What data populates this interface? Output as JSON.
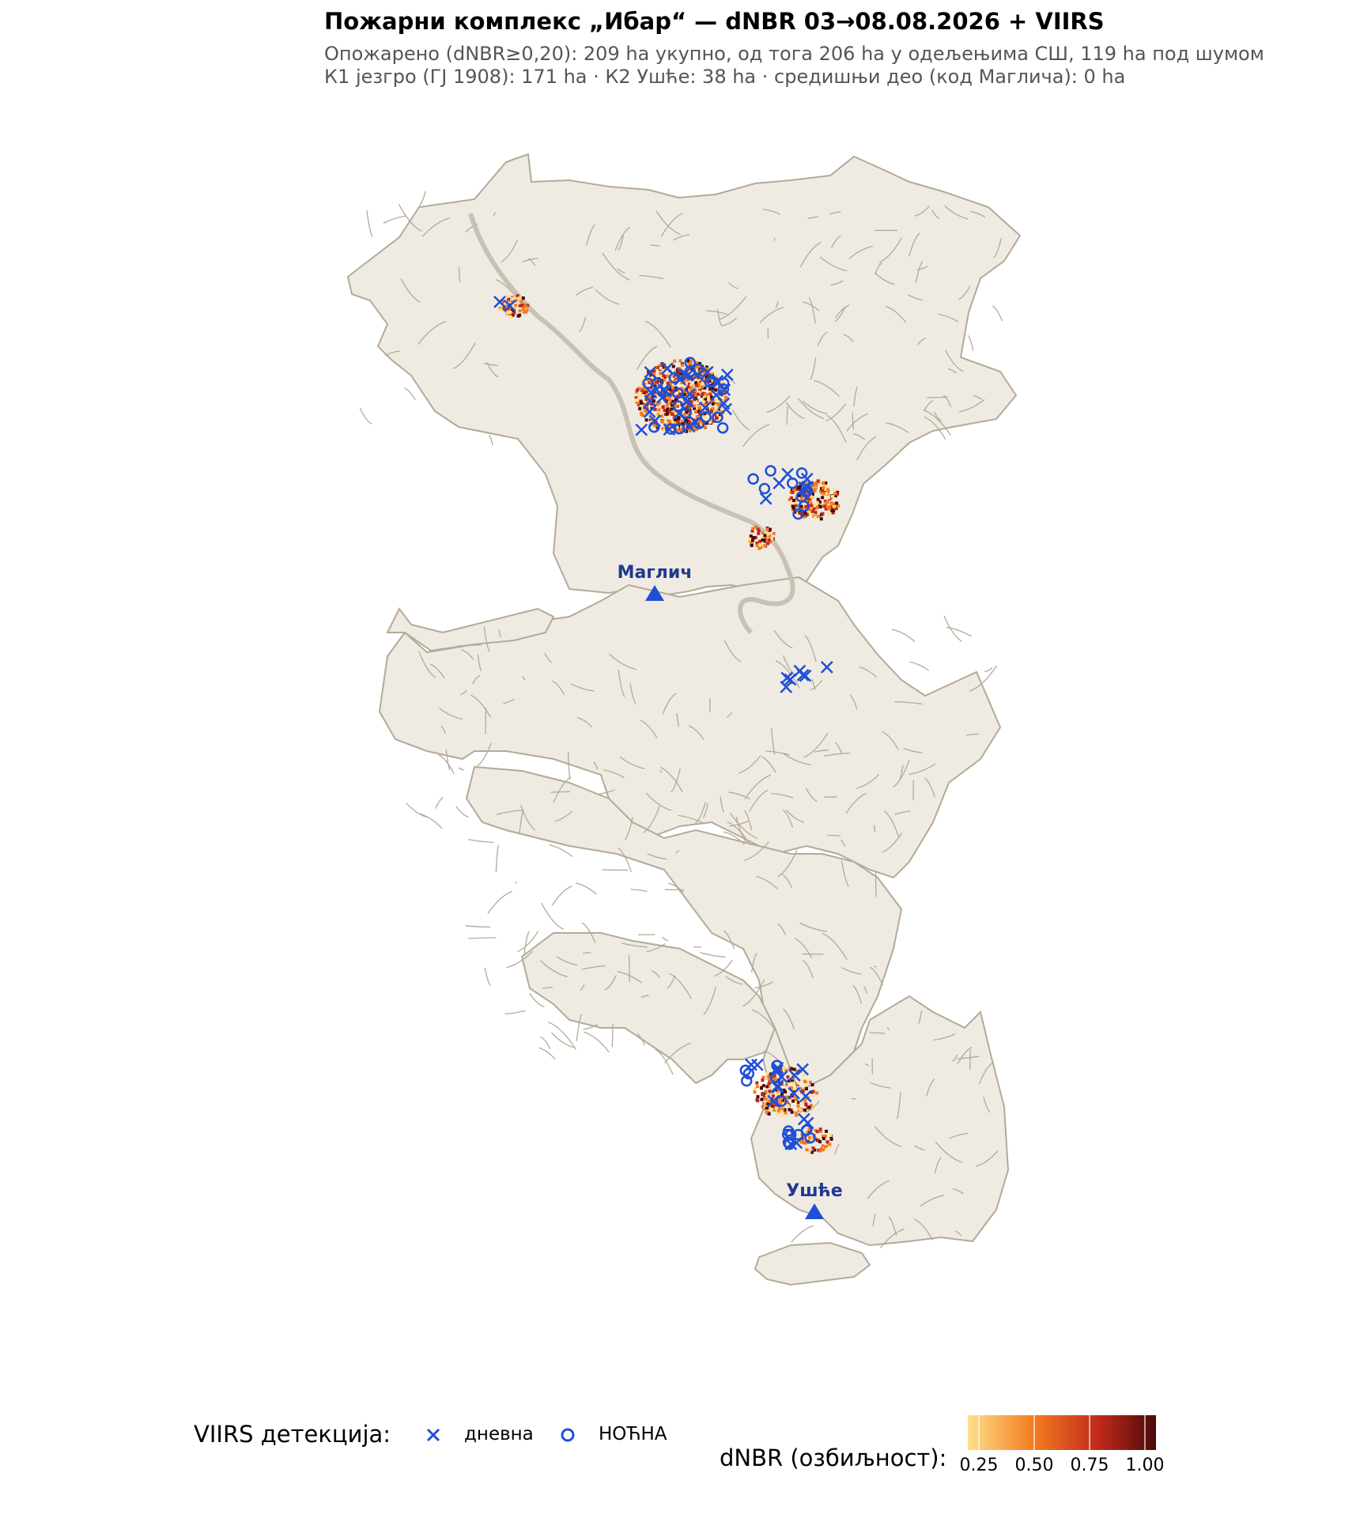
{
  "title": "Пожарни комплекс „Ибар“ — dNBR 03→08.08.2026 + VIIRS",
  "subtitle_line1": "Опожарено (dNBR≥0,20): 209 ha укупно, од тога 206 ha у одељењима СШ, 119 ha под шумом",
  "subtitle_line2": "К1 језгро (ГЈ 1908): 171 ha · К2 Ушће: 38 ha · средишњи део (код Маглича): 0 ha",
  "towns": [
    {
      "name": "Маглич",
      "symbol": "triangle"
    },
    {
      "name": "Ушће",
      "symbol": "triangle"
    }
  ],
  "legend": {
    "viirs_title": "VIIRS детекција:",
    "day_label": "дневна",
    "night_label": "НОЋНА",
    "day_symbol": "cross-icon",
    "night_symbol": "circle-icon",
    "dnbr_title": "dNBR (озбиљност):",
    "dnbr_ticks": [
      "0.25",
      "0.50",
      "0.75",
      "1.00"
    ],
    "dnbr_tick_values": [
      0.25,
      0.5,
      0.75,
      1.0
    ],
    "dnbr_range": [
      0.2,
      1.05
    ]
  },
  "colors": {
    "land_fill": "#efebe2",
    "land_stroke": "#b3aa98",
    "river": "#c8c2b6",
    "detection": "#1f4fd6",
    "town_marker": "#1f4fd6",
    "town_label": "#1f3a8f",
    "dnbr_low": "#ffe08a",
    "dnbr_mid": "#f47c20",
    "dnbr_high": "#c0281c",
    "dnbr_max": "#4a0a0a"
  }
}
